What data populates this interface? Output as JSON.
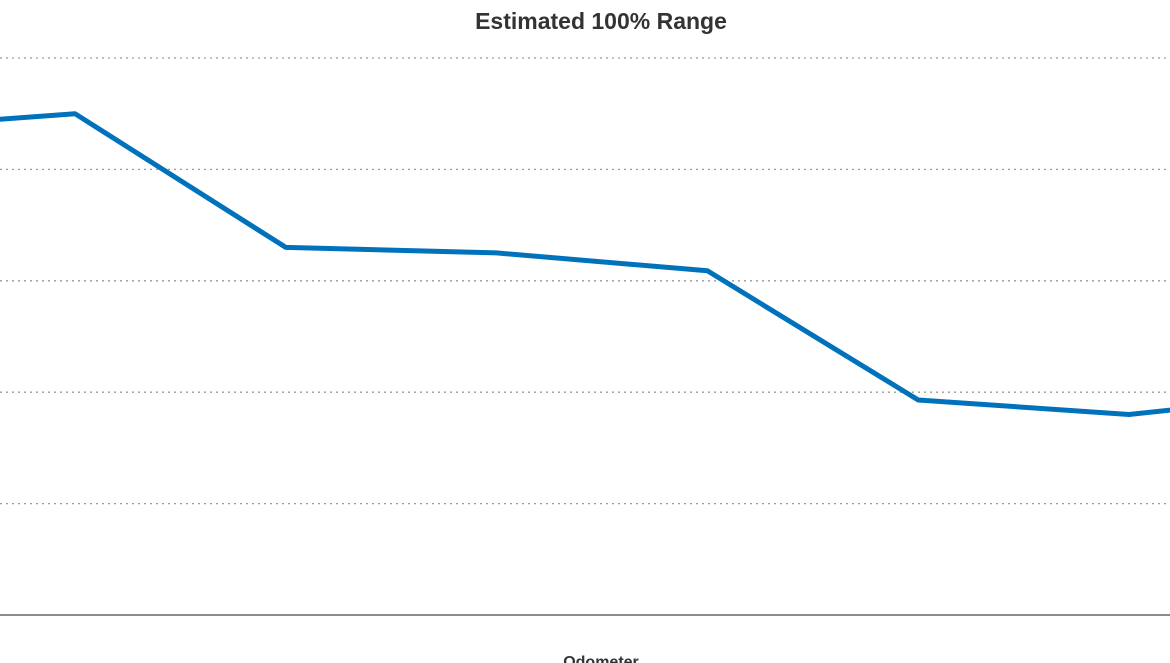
{
  "chart_data": {
    "type": "line",
    "title": "Estimated 100% Range",
    "xlabel": "Odometer",
    "ylabel": "",
    "grid": true,
    "ylim": [
      0,
      5
    ],
    "series": [
      {
        "color": "#0072bc",
        "points": [
          {
            "x": -0.36,
            "y": 4.45
          },
          {
            "x": 0.0,
            "y": 4.5
          },
          {
            "x": 1.0,
            "y": 3.3
          },
          {
            "x": 2.0,
            "y": 3.25
          },
          {
            "x": 3.0,
            "y": 3.09
          },
          {
            "x": 4.0,
            "y": 1.93
          },
          {
            "x": 5.0,
            "y": 1.8
          },
          {
            "x": 5.2,
            "y": 1.84
          }
        ]
      }
    ]
  }
}
